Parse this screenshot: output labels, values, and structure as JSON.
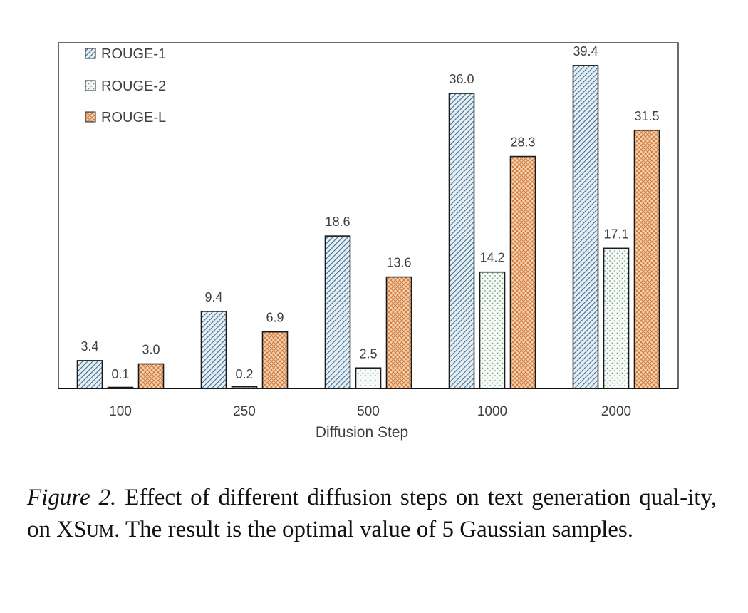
{
  "chart_data": {
    "type": "bar",
    "title": "",
    "xlabel": "Diffusion Step",
    "ylabel": "",
    "categories": [
      "100",
      "250",
      "500",
      "1000",
      "2000"
    ],
    "series": [
      {
        "name": "ROUGE-1",
        "values": [
          3.4,
          9.4,
          18.6,
          36.0,
          39.4
        ],
        "labels": [
          "3.4",
          "9.4",
          "18.6",
          "36.0",
          "39.4"
        ],
        "pattern": "diagonal",
        "color": "#3b6f93"
      },
      {
        "name": "ROUGE-2",
        "values": [
          0.1,
          0.2,
          2.5,
          14.2,
          17.1
        ],
        "labels": [
          "0.1",
          "0.2",
          "2.5",
          "14.2",
          "17.1"
        ],
        "pattern": "dots",
        "color": "#7fa896"
      },
      {
        "name": "ROUGE-L",
        "values": [
          3.0,
          6.9,
          13.6,
          28.3,
          31.5
        ],
        "labels": [
          "3.0",
          "6.9",
          "13.6",
          "28.3",
          "31.5"
        ],
        "pattern": "crosshatch",
        "color": "#d98a4a"
      }
    ],
    "ylim": [
      0,
      44
    ],
    "grid": false,
    "legend": "top-left"
  },
  "caption": {
    "label": "Figure 2.",
    "text_before": " Effect of different diffusion steps on text generation qual-ity, on ",
    "dataset_first": "XS",
    "dataset_rest": "UM",
    "text_after": ".  The result is the optimal value of 5 Gaussian samples."
  }
}
